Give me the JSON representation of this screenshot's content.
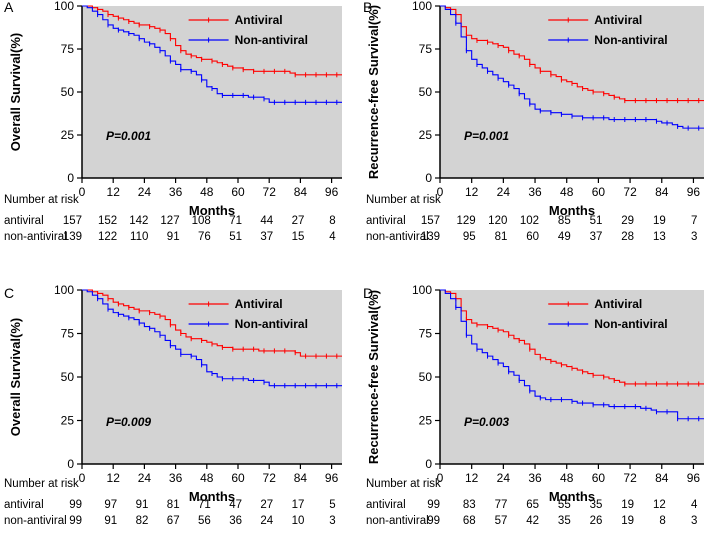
{
  "chart_data": [
    {
      "type": "line",
      "panel_label": "A",
      "ylabel": "Overall Survival(%)",
      "xlabel": "Months",
      "xlim": [
        0,
        100
      ],
      "ylim": [
        0,
        100
      ],
      "xticks": [
        "0",
        "12",
        "24",
        "36",
        "48",
        "60",
        "72",
        "84",
        "96"
      ],
      "yticks": [
        "0",
        "25",
        "50",
        "75",
        "100"
      ],
      "pvalue": "P=0.001",
      "legend_position": "top-right",
      "series": [
        {
          "name": "Antiviral",
          "color": "#ff0000",
          "x": [
            0,
            2,
            4,
            6,
            8,
            10,
            12,
            14,
            16,
            18,
            20,
            22,
            24,
            26,
            28,
            30,
            32,
            34,
            36,
            38,
            40,
            42,
            44,
            46,
            48,
            50,
            52,
            54,
            56,
            58,
            60,
            62,
            64,
            66,
            68,
            70,
            72,
            74,
            76,
            78,
            80,
            82,
            84,
            86,
            88,
            90,
            92,
            94,
            96,
            98,
            100
          ],
          "y": [
            100,
            100,
            99,
            98,
            97,
            95,
            94,
            93,
            92,
            91,
            90,
            89,
            89,
            88,
            87,
            86,
            84,
            81,
            77,
            74,
            72,
            71,
            70,
            69,
            69,
            68,
            67,
            66,
            65,
            64,
            64,
            63,
            63,
            62,
            62,
            62,
            62,
            62,
            62,
            62,
            61,
            60,
            60,
            60,
            60,
            60,
            60,
            60,
            60,
            60,
            60
          ]
        },
        {
          "name": "Non-antiviral",
          "color": "#0000ff",
          "x": [
            0,
            2,
            4,
            6,
            8,
            10,
            12,
            14,
            16,
            18,
            20,
            22,
            24,
            26,
            28,
            30,
            32,
            34,
            36,
            38,
            40,
            42,
            44,
            46,
            48,
            50,
            52,
            54,
            56,
            58,
            60,
            62,
            64,
            66,
            68,
            70,
            72,
            74,
            76,
            78,
            80,
            82,
            84,
            86,
            88,
            90,
            92,
            94,
            96,
            98,
            100
          ],
          "y": [
            100,
            99,
            97,
            95,
            92,
            89,
            87,
            86,
            85,
            84,
            83,
            81,
            79,
            78,
            76,
            74,
            71,
            68,
            66,
            63,
            63,
            62,
            60,
            57,
            53,
            52,
            49,
            48,
            48,
            48,
            48,
            48,
            47,
            47,
            47,
            46,
            44,
            44,
            44,
            44,
            44,
            44,
            44,
            44,
            44,
            44,
            44,
            44,
            44,
            44,
            44
          ]
        }
      ],
      "risk_table": {
        "heading": "Number at risk",
        "rows": [
          {
            "label": "antiviral",
            "values": [
              "157",
              "152",
              "142",
              "127",
              "108",
              "71",
              "44",
              "27",
              "8"
            ]
          },
          {
            "label": "non-antiviral",
            "values": [
              "139",
              "122",
              "110",
              "91",
              "76",
              "51",
              "37",
              "15",
              "4"
            ]
          }
        ]
      }
    },
    {
      "type": "line",
      "panel_label": "B",
      "ylabel": "Recurrence-free Survival(%)",
      "xlabel": "Months",
      "xlim": [
        0,
        100
      ],
      "ylim": [
        0,
        100
      ],
      "xticks": [
        "0",
        "12",
        "24",
        "36",
        "48",
        "60",
        "72",
        "84",
        "96"
      ],
      "yticks": [
        "0",
        "25",
        "50",
        "75",
        "100"
      ],
      "pvalue": "P=0.001",
      "legend_position": "top-right",
      "series": [
        {
          "name": "Antiviral",
          "color": "#ff0000",
          "x": [
            0,
            2,
            4,
            6,
            8,
            10,
            12,
            14,
            16,
            18,
            20,
            22,
            24,
            26,
            28,
            30,
            32,
            34,
            36,
            38,
            40,
            42,
            44,
            46,
            48,
            50,
            52,
            54,
            56,
            58,
            60,
            62,
            64,
            66,
            68,
            70,
            72,
            74,
            76,
            78,
            80,
            82,
            84,
            86,
            88,
            90,
            92,
            94,
            96,
            98,
            100
          ],
          "y": [
            100,
            99,
            98,
            95,
            88,
            83,
            81,
            80,
            80,
            79,
            78,
            77,
            76,
            74,
            72,
            71,
            69,
            66,
            64,
            62,
            62,
            60,
            59,
            57,
            56,
            55,
            53,
            52,
            51,
            50,
            50,
            49,
            48,
            47,
            46,
            45,
            45,
            45,
            45,
            45,
            45,
            45,
            45,
            45,
            45,
            45,
            45,
            45,
            45,
            45,
            45
          ]
        },
        {
          "name": "Non-antiviral",
          "color": "#0000ff",
          "x": [
            0,
            2,
            4,
            6,
            8,
            10,
            12,
            14,
            16,
            18,
            20,
            22,
            24,
            26,
            28,
            30,
            32,
            34,
            36,
            38,
            40,
            42,
            44,
            46,
            48,
            50,
            52,
            54,
            56,
            58,
            60,
            62,
            64,
            66,
            68,
            70,
            72,
            74,
            76,
            78,
            80,
            82,
            84,
            86,
            88,
            90,
            92,
            94,
            96,
            98,
            100
          ],
          "y": [
            100,
            98,
            95,
            90,
            82,
            74,
            69,
            66,
            64,
            62,
            60,
            58,
            56,
            54,
            52,
            49,
            46,
            43,
            40,
            39,
            39,
            38,
            38,
            37,
            37,
            36,
            36,
            35,
            35,
            35,
            35,
            35,
            34,
            34,
            34,
            34,
            34,
            34,
            34,
            34,
            34,
            33,
            32,
            32,
            31,
            30,
            29,
            29,
            29,
            29,
            29
          ]
        }
      ],
      "risk_table": {
        "heading": "Number at risk",
        "rows": [
          {
            "label": "antiviral",
            "values": [
              "157",
              "129",
              "120",
              "102",
              "85",
              "51",
              "29",
              "19",
              "7"
            ]
          },
          {
            "label": "non-antiviral",
            "values": [
              "139",
              "95",
              "81",
              "60",
              "49",
              "37",
              "28",
              "13",
              "3"
            ]
          }
        ]
      }
    },
    {
      "type": "line",
      "panel_label": "C",
      "ylabel": "Overall Survival(%)",
      "xlabel": "Months",
      "xlim": [
        0,
        100
      ],
      "ylim": [
        0,
        100
      ],
      "xticks": [
        "0",
        "12",
        "24",
        "36",
        "48",
        "60",
        "72",
        "84",
        "96"
      ],
      "yticks": [
        "0",
        "25",
        "50",
        "75",
        "100"
      ],
      "pvalue": "P=0.009",
      "legend_position": "top-right",
      "series": [
        {
          "name": "Antiviral",
          "color": "#ff0000",
          "x": [
            0,
            2,
            4,
            6,
            8,
            10,
            12,
            14,
            16,
            18,
            20,
            22,
            24,
            26,
            28,
            30,
            32,
            34,
            36,
            38,
            40,
            42,
            44,
            46,
            48,
            50,
            52,
            54,
            56,
            58,
            60,
            62,
            64,
            66,
            68,
            70,
            72,
            74,
            76,
            78,
            80,
            82,
            84,
            86,
            88,
            90,
            92,
            94,
            96,
            98,
            100
          ],
          "y": [
            100,
            100,
            99,
            98,
            97,
            95,
            93,
            92,
            91,
            90,
            89,
            88,
            88,
            87,
            86,
            85,
            83,
            80,
            77,
            75,
            73,
            72,
            72,
            71,
            70,
            69,
            68,
            67,
            67,
            66,
            66,
            66,
            66,
            66,
            65,
            65,
            65,
            65,
            65,
            65,
            65,
            64,
            62,
            62,
            62,
            62,
            62,
            62,
            62,
            62,
            62
          ]
        },
        {
          "name": "Non-antiviral",
          "color": "#0000ff",
          "x": [
            0,
            2,
            4,
            6,
            8,
            10,
            12,
            14,
            16,
            18,
            20,
            22,
            24,
            26,
            28,
            30,
            32,
            34,
            36,
            38,
            40,
            42,
            44,
            46,
            48,
            50,
            52,
            54,
            56,
            58,
            60,
            62,
            64,
            66,
            68,
            70,
            72,
            74,
            76,
            78,
            80,
            82,
            84,
            86,
            88,
            90,
            92,
            94,
            96,
            98,
            100
          ],
          "y": [
            100,
            99,
            97,
            95,
            92,
            89,
            87,
            86,
            85,
            84,
            83,
            81,
            79,
            78,
            76,
            74,
            71,
            68,
            66,
            63,
            63,
            62,
            60,
            57,
            53,
            52,
            50,
            49,
            49,
            49,
            49,
            49,
            48,
            48,
            48,
            47,
            45,
            45,
            45,
            45,
            45,
            45,
            45,
            45,
            45,
            45,
            45,
            45,
            45,
            45,
            45
          ]
        }
      ],
      "risk_table": {
        "heading": "Number at risk",
        "rows": [
          {
            "label": "antiviral",
            "values": [
              "99",
              "97",
              "91",
              "81",
              "71",
              "47",
              "27",
              "17",
              "5"
            ]
          },
          {
            "label": "non-antiviral",
            "values": [
              "99",
              "91",
              "82",
              "67",
              "56",
              "36",
              "24",
              "10",
              "3"
            ]
          }
        ]
      }
    },
    {
      "type": "line",
      "panel_label": "D",
      "ylabel": "Recurrence-free Survival(%)",
      "xlabel": "Months",
      "xlim": [
        0,
        100
      ],
      "ylim": [
        0,
        100
      ],
      "xticks": [
        "0",
        "12",
        "24",
        "36",
        "48",
        "60",
        "72",
        "84",
        "96"
      ],
      "yticks": [
        "0",
        "25",
        "50",
        "75",
        "100"
      ],
      "pvalue": "P=0.003",
      "legend_position": "top-right",
      "series": [
        {
          "name": "Antiviral",
          "color": "#ff0000",
          "x": [
            0,
            2,
            4,
            6,
            8,
            10,
            12,
            14,
            16,
            18,
            20,
            22,
            24,
            26,
            28,
            30,
            32,
            34,
            36,
            38,
            40,
            42,
            44,
            46,
            48,
            50,
            52,
            54,
            56,
            58,
            60,
            62,
            64,
            66,
            68,
            70,
            72,
            74,
            76,
            78,
            80,
            82,
            84,
            86,
            88,
            90,
            92,
            94,
            96,
            98,
            100
          ],
          "y": [
            100,
            99,
            98,
            95,
            88,
            83,
            81,
            80,
            80,
            79,
            78,
            77,
            76,
            74,
            72,
            71,
            69,
            66,
            63,
            61,
            60,
            59,
            58,
            57,
            56,
            55,
            54,
            53,
            52,
            51,
            51,
            50,
            49,
            48,
            47,
            46,
            46,
            46,
            46,
            46,
            46,
            46,
            46,
            46,
            46,
            46,
            46,
            46,
            46,
            46,
            46
          ]
        },
        {
          "name": "Non-antiviral",
          "color": "#0000ff",
          "x": [
            0,
            2,
            4,
            6,
            8,
            10,
            12,
            14,
            16,
            18,
            20,
            22,
            24,
            26,
            28,
            30,
            32,
            34,
            36,
            38,
            40,
            42,
            44,
            46,
            48,
            50,
            52,
            54,
            56,
            58,
            60,
            62,
            64,
            66,
            68,
            70,
            72,
            74,
            76,
            78,
            80,
            82,
            84,
            86,
            88,
            90,
            92,
            94,
            96,
            98,
            100
          ],
          "y": [
            100,
            98,
            95,
            90,
            82,
            74,
            69,
            66,
            64,
            62,
            60,
            58,
            56,
            53,
            51,
            48,
            45,
            42,
            39,
            38,
            37,
            37,
            37,
            37,
            37,
            36,
            35,
            35,
            35,
            34,
            34,
            34,
            33,
            33,
            33,
            33,
            33,
            33,
            32,
            32,
            31,
            30,
            30,
            30,
            30,
            26,
            26,
            26,
            26,
            26,
            26
          ]
        }
      ],
      "risk_table": {
        "heading": "Number at risk",
        "rows": [
          {
            "label": "antiviral",
            "values": [
              "99",
              "83",
              "77",
              "65",
              "55",
              "35",
              "19",
              "12",
              "4"
            ]
          },
          {
            "label": "non-antiviral",
            "values": [
              "99",
              "68",
              "57",
              "42",
              "35",
              "26",
              "19",
              "8",
              "3"
            ]
          }
        ]
      }
    }
  ]
}
